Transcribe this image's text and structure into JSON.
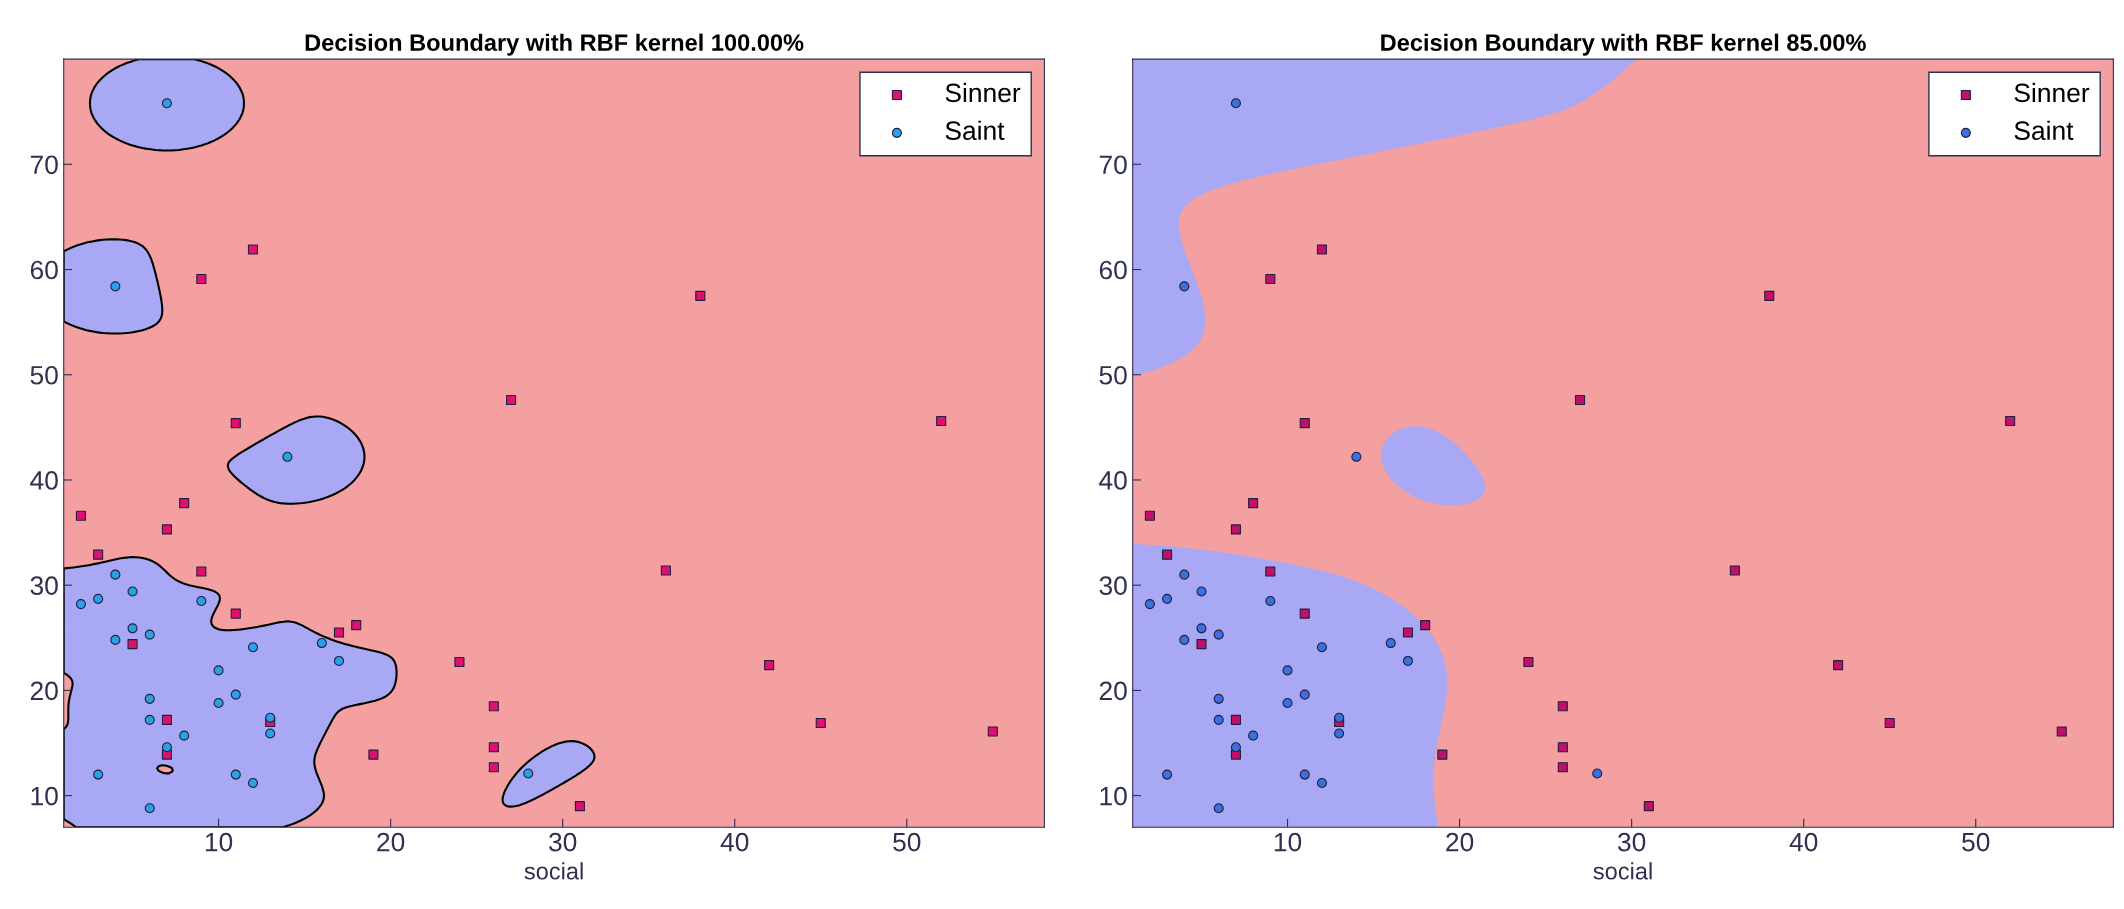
{
  "chart_data": [
    {
      "type": "scatter",
      "title": "Decision Boundary with RBF kernel 100.00%",
      "xlabel": "social",
      "xlim": [
        1,
        58
      ],
      "ylim": [
        7,
        80
      ],
      "xticks": [
        10,
        20,
        30,
        40,
        50
      ],
      "yticks": [
        10,
        20,
        30,
        40,
        50,
        60,
        70
      ],
      "legend": "top right",
      "grid": false,
      "series": [
        {
          "name": "Sinner",
          "marker": "square",
          "color": "#e0106e",
          "x": [
            12,
            9,
            27,
            11,
            8,
            2,
            7,
            3,
            9,
            11,
            18,
            17,
            5,
            24,
            26,
            7,
            26,
            19,
            7,
            26,
            13,
            38,
            52,
            36,
            42,
            45,
            55,
            31
          ],
          "values": [
            61.9,
            59.1,
            47.6,
            45.4,
            37.8,
            36.6,
            35.3,
            32.9,
            31.3,
            27.3,
            26.2,
            25.5,
            24.4,
            22.7,
            18.5,
            17.2,
            14.6,
            13.9,
            13.9,
            12.7,
            17.0,
            57.5,
            45.6,
            31.4,
            22.4,
            16.9,
            16.1,
            9.0
          ]
        },
        {
          "name": "Saint",
          "marker": "circle",
          "color": "#2aa0e8",
          "x": [
            7,
            4,
            14,
            4,
            3,
            2,
            5,
            9,
            4,
            5,
            6,
            12,
            16,
            17,
            10,
            10,
            11,
            6,
            6,
            13,
            13,
            8,
            7,
            3,
            11,
            12,
            6,
            28
          ],
          "values": [
            75.8,
            58.4,
            42.2,
            31.0,
            28.7,
            28.2,
            29.4,
            28.5,
            24.8,
            25.9,
            25.3,
            24.1,
            24.5,
            22.8,
            21.9,
            18.8,
            19.6,
            19.2,
            17.2,
            17.4,
            15.9,
            15.7,
            14.6,
            12.0,
            12.0,
            11.2,
            8.8,
            12.1
          ]
        }
      ]
    },
    {
      "type": "scatter",
      "title": "Decision Boundary with RBF kernel 85.00%",
      "xlabel": "social",
      "xlim": [
        1,
        58
      ],
      "ylim": [
        7,
        80
      ],
      "xticks": [
        10,
        20,
        30,
        40,
        50
      ],
      "yticks": [
        10,
        20,
        30,
        40,
        50,
        60,
        70
      ],
      "legend": "top right",
      "grid": false,
      "series": [
        {
          "name": "Sinner",
          "marker": "square",
          "color": "#c0106a",
          "x": [
            12,
            9,
            27,
            11,
            8,
            2,
            7,
            3,
            9,
            11,
            18,
            17,
            5,
            24,
            26,
            7,
            26,
            19,
            7,
            26,
            13,
            38,
            52,
            36,
            42,
            45,
            55,
            31
          ],
          "values": [
            61.9,
            59.1,
            47.6,
            45.4,
            37.8,
            36.6,
            35.3,
            32.9,
            31.3,
            27.3,
            26.2,
            25.5,
            24.4,
            22.7,
            18.5,
            17.2,
            14.6,
            13.9,
            13.9,
            12.7,
            17.0,
            57.5,
            45.6,
            31.4,
            22.4,
            16.9,
            16.1,
            9.0
          ]
        },
        {
          "name": "Saint",
          "marker": "circle",
          "color": "#3a70e0",
          "x": [
            7,
            4,
            14,
            4,
            3,
            2,
            5,
            9,
            4,
            5,
            6,
            12,
            16,
            17,
            10,
            10,
            11,
            6,
            6,
            13,
            13,
            8,
            7,
            3,
            11,
            12,
            6,
            28
          ],
          "values": [
            75.8,
            58.4,
            42.2,
            31.0,
            28.7,
            28.2,
            29.4,
            28.5,
            24.8,
            25.9,
            25.3,
            24.1,
            24.5,
            22.8,
            21.9,
            18.8,
            19.6,
            19.2,
            17.2,
            17.4,
            15.9,
            15.7,
            14.6,
            12.0,
            12.0,
            11.2,
            8.8,
            12.1
          ]
        }
      ]
    }
  ]
}
